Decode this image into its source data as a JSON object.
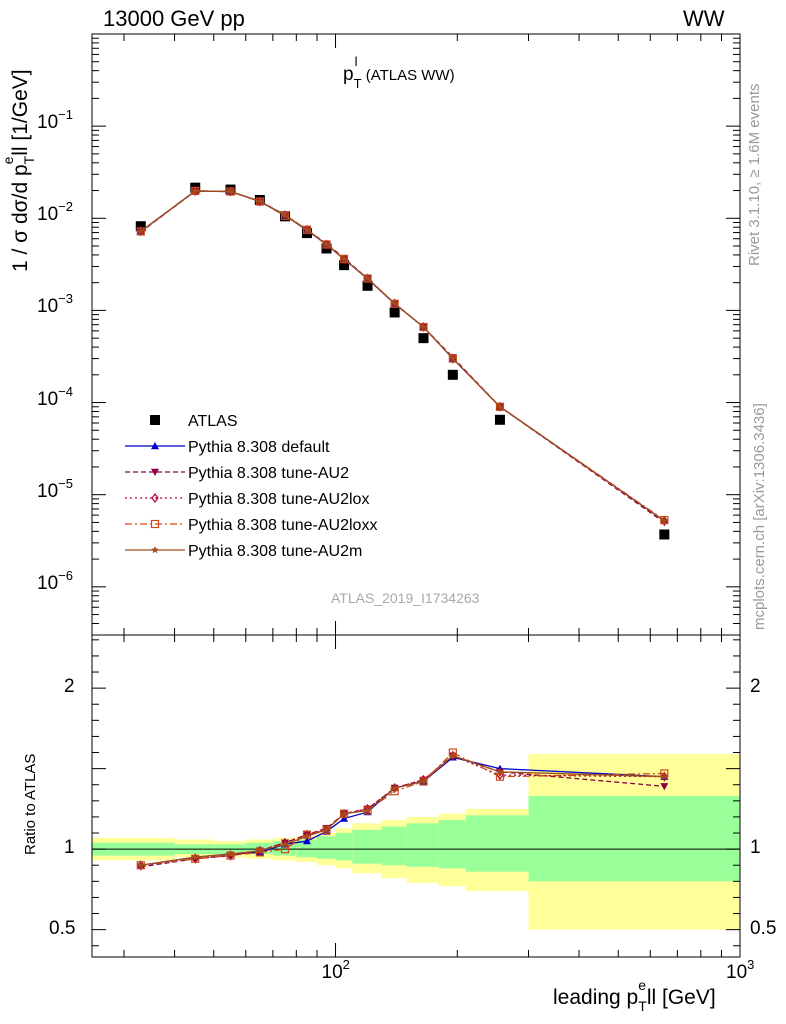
{
  "header": {
    "left": "13000 GeV pp",
    "right": "WW"
  },
  "plot_title": {
    "main": "p",
    "sup": "l",
    "sub": "T",
    "rest": " (ATLAS WW)"
  },
  "side_labels": {
    "rivet": "Rivet 3.1.10, ≥ 1.6M events",
    "mcplots": "mcplots.cern.ch [arXiv:1306.3436]"
  },
  "watermark": "ATLAS_2019_I1734263",
  "ylabel_main": "1 / σ  dσ/d pᵀᵉll [1/GeV]",
  "ylabel_main_parts": {
    "a": "1 / σ  dσ/d p",
    "sup": "e",
    "sub": "T",
    "b": "ll [1/GeV]"
  },
  "ylabel_ratio": "Ratio to ATLAS",
  "xlabel_parts": {
    "a": "leading p",
    "sup": "e",
    "sub": "T",
    "b": "ll [GeV]"
  },
  "colors": {
    "atlas": "#000000",
    "default": "#0000cc",
    "au2": "#8b0045",
    "au2lox": "#b0003a",
    "au2loxx": "#cc4a1a",
    "au2m": "#a0501a",
    "band_inner": "#99ff99",
    "band_outer": "#ffff99"
  },
  "chart_data": [
    {
      "type": "scatter",
      "panel": "main",
      "xscale": "log",
      "yscale": "log",
      "xlim": [
        25,
        1000
      ],
      "ylim": [
        3e-07,
        1
      ],
      "xticks": [
        {
          "value": 100,
          "base": "10",
          "exp": "2"
        },
        {
          "value": 1000,
          "base": "10",
          "exp": "3"
        }
      ],
      "yticks": [
        {
          "value": 1e-06,
          "base": "10",
          "exp": "−6"
        },
        {
          "value": 1e-05,
          "base": "10",
          "exp": "−5"
        },
        {
          "value": 0.0001,
          "base": "10",
          "exp": "−4"
        },
        {
          "value": 0.001,
          "base": "10",
          "exp": "−3"
        },
        {
          "value": 0.01,
          "base": "10",
          "exp": "−2"
        },
        {
          "value": 0.1,
          "base": "10",
          "exp": "−1"
        }
      ],
      "x": [
        33,
        45,
        55,
        65,
        75,
        85,
        95,
        105,
        120,
        140,
        165,
        195,
        255,
        650
      ],
      "series": [
        {
          "name": "ATLAS",
          "marker": "square",
          "colorKey": "atlas",
          "lineStyle": "none",
          "values": [
            0.0082,
            0.0215,
            0.0205,
            0.0158,
            0.0105,
            0.0069,
            0.0047,
            0.0031,
            0.00185,
            0.00095,
            0.0005,
            0.0002,
            6.5e-05,
            3.7e-06
          ]
        },
        {
          "name": "Pythia 8.308 default",
          "marker": "triangle-up",
          "colorKey": "default",
          "lineStyle": "solid",
          "values": [
            0.0072,
            0.0198,
            0.0195,
            0.0152,
            0.0108,
            0.0074,
            0.0052,
            0.0036,
            0.0022,
            0.00118,
            0.00066,
            0.0003,
            9e-05,
            5.2e-06
          ]
        },
        {
          "name": "Pythia 8.308 tune-AU2",
          "marker": "triangle-down",
          "colorKey": "au2",
          "lineStyle": "dashed",
          "values": [
            0.0071,
            0.0197,
            0.0196,
            0.0153,
            0.0109,
            0.0075,
            0.0053,
            0.0037,
            0.00222,
            0.00119,
            0.00066,
            0.00031,
            9e-05,
            5e-06
          ]
        },
        {
          "name": "Pythia 8.308 tune-AU2lox",
          "marker": "diamond-open",
          "colorKey": "au2lox",
          "lineStyle": "dotted",
          "values": [
            0.0072,
            0.0198,
            0.0196,
            0.0152,
            0.0108,
            0.0075,
            0.0052,
            0.0036,
            0.00222,
            0.00119,
            0.00066,
            0.0003,
            9e-05,
            5.2e-06
          ]
        },
        {
          "name": "Pythia 8.308 tune-AU2loxx",
          "marker": "square-open",
          "colorKey": "au2loxx",
          "lineStyle": "dashdot",
          "values": [
            0.0072,
            0.0198,
            0.0195,
            0.0152,
            0.0106,
            0.0075,
            0.0052,
            0.0036,
            0.00222,
            0.00118,
            0.00066,
            0.0003,
            9e-05,
            5.3e-06
          ]
        },
        {
          "name": "Pythia 8.308 tune-AU2m",
          "marker": "star",
          "colorKey": "au2m",
          "lineStyle": "solid",
          "values": [
            0.0072,
            0.0198,
            0.0196,
            0.0153,
            0.0108,
            0.0075,
            0.0052,
            0.0036,
            0.00222,
            0.00119,
            0.00066,
            0.0003,
            9e-05,
            5.2e-06
          ]
        }
      ],
      "legend": "upper-left"
    },
    {
      "type": "line",
      "panel": "ratio",
      "xscale": "log",
      "yscale": "linear",
      "xlim": [
        25,
        1000
      ],
      "ylim": [
        0.33,
        2.33
      ],
      "yticks": [
        {
          "value": 0.5,
          "label": "0.5"
        },
        {
          "value": 1,
          "label": "1"
        },
        {
          "value": 2,
          "label": "2"
        }
      ],
      "x": [
        33,
        45,
        55,
        65,
        75,
        85,
        95,
        105,
        120,
        140,
        165,
        195,
        255,
        650
      ],
      "bands": {
        "edges": [
          25,
          40,
          50,
          60,
          70,
          80,
          90,
          100,
          110,
          130,
          150,
          180,
          210,
          300,
          1000
        ],
        "inner": [
          [
            0.96,
            1.04
          ],
          [
            0.97,
            1.03
          ],
          [
            0.97,
            1.03
          ],
          [
            0.97,
            1.04
          ],
          [
            0.96,
            1.05
          ],
          [
            0.95,
            1.06
          ],
          [
            0.94,
            1.08
          ],
          [
            0.93,
            1.1
          ],
          [
            0.91,
            1.12
          ],
          [
            0.9,
            1.14
          ],
          [
            0.89,
            1.16
          ],
          [
            0.88,
            1.18
          ],
          [
            0.86,
            1.21
          ],
          [
            0.8,
            1.33
          ]
        ],
        "outer": [
          [
            0.93,
            1.07
          ],
          [
            0.95,
            1.06
          ],
          [
            0.95,
            1.05
          ],
          [
            0.94,
            1.06
          ],
          [
            0.93,
            1.07
          ],
          [
            0.92,
            1.08
          ],
          [
            0.9,
            1.1
          ],
          [
            0.88,
            1.13
          ],
          [
            0.85,
            1.16
          ],
          [
            0.82,
            1.18
          ],
          [
            0.79,
            1.2
          ],
          [
            0.77,
            1.22
          ],
          [
            0.74,
            1.25
          ],
          [
            0.5,
            1.59
          ]
        ]
      },
      "series": [
        {
          "name": "Pythia 8.308 default",
          "marker": "triangle-up",
          "colorKey": "default",
          "lineStyle": "solid",
          "values": [
            0.9,
            0.95,
            0.97,
            0.98,
            1.03,
            1.05,
            1.11,
            1.19,
            1.23,
            1.38,
            1.42,
            1.57,
            1.5,
            1.45
          ]
        },
        {
          "name": "Pythia 8.308 tune-AU2",
          "marker": "triangle-down",
          "colorKey": "au2",
          "lineStyle": "dashed",
          "values": [
            0.89,
            0.94,
            0.96,
            0.99,
            1.04,
            1.09,
            1.13,
            1.22,
            1.25,
            1.38,
            1.43,
            1.58,
            1.48,
            1.39
          ]
        },
        {
          "name": "Pythia 8.308 tune-AU2lox",
          "marker": "diamond-open",
          "colorKey": "au2lox",
          "lineStyle": "dotted",
          "values": [
            0.9,
            0.94,
            0.96,
            0.99,
            1.04,
            1.09,
            1.12,
            1.22,
            1.25,
            1.38,
            1.43,
            1.58,
            1.46,
            1.45
          ]
        },
        {
          "name": "Pythia 8.308 tune-AU2loxx",
          "marker": "square-open",
          "colorKey": "au2loxx",
          "lineStyle": "dashdot",
          "values": [
            0.9,
            0.94,
            0.96,
            0.98,
            1.0,
            1.09,
            1.12,
            1.22,
            1.24,
            1.36,
            1.42,
            1.6,
            1.45,
            1.47
          ]
        },
        {
          "name": "Pythia 8.308 tune-AU2m",
          "marker": "star",
          "colorKey": "au2m",
          "lineStyle": "solid",
          "values": [
            0.9,
            0.95,
            0.97,
            0.99,
            1.03,
            1.08,
            1.12,
            1.22,
            1.24,
            1.38,
            1.42,
            1.58,
            1.48,
            1.45
          ]
        }
      ]
    }
  ]
}
